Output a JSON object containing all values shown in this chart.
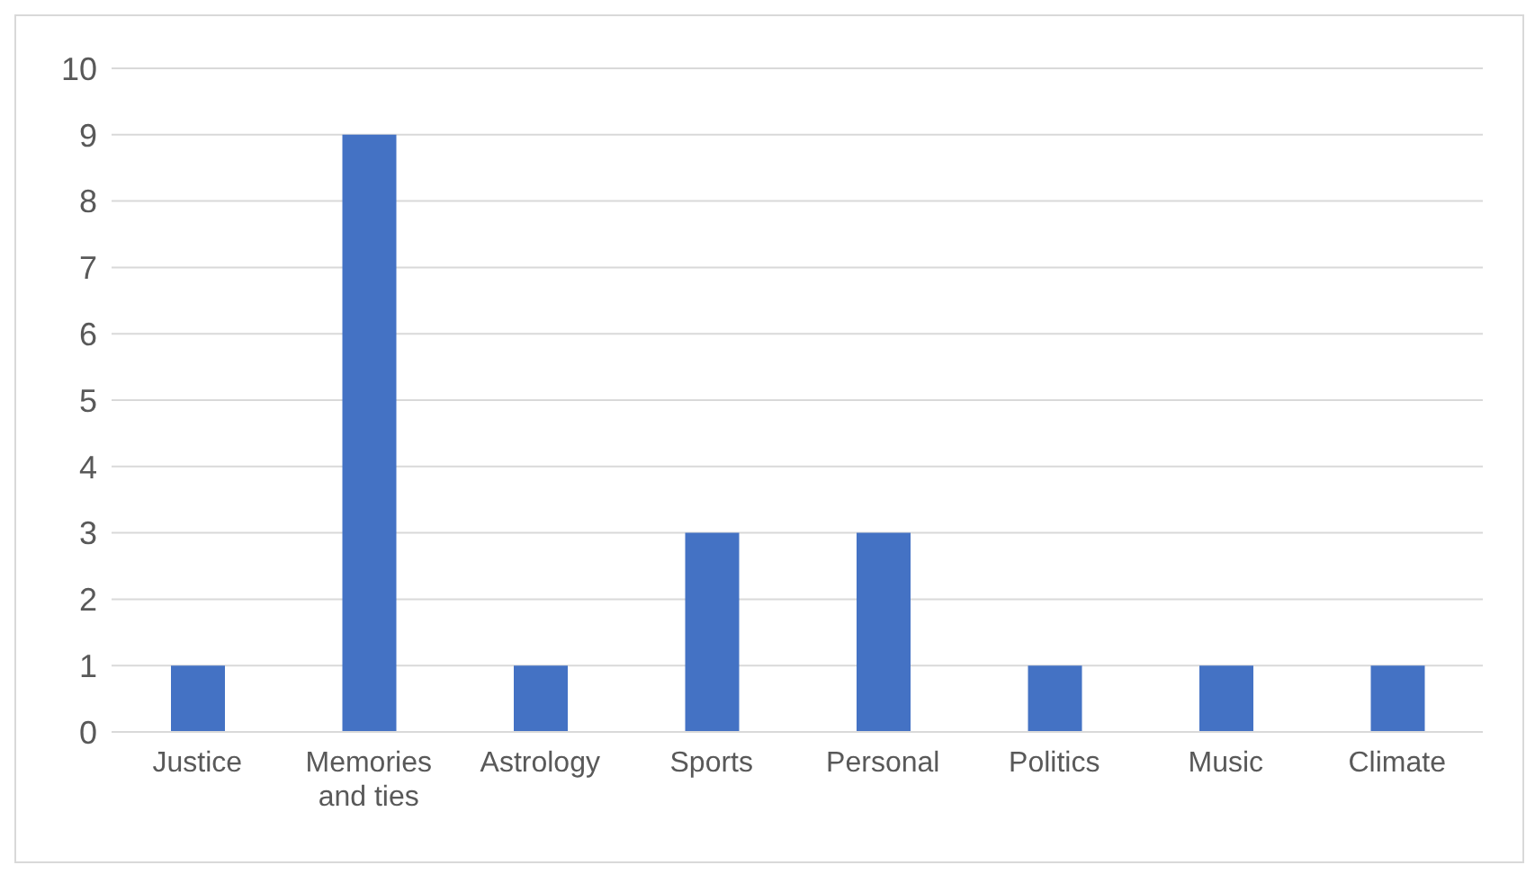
{
  "chart_data": {
    "type": "bar",
    "categories": [
      "Justice",
      "Memories and ties",
      "Astrology",
      "Sports",
      "Personal",
      "Politics",
      "Music",
      "Climate"
    ],
    "values": [
      1,
      9,
      1,
      3,
      3,
      1,
      1,
      1
    ],
    "color": "#4472c4",
    "ylim": [
      0,
      10
    ],
    "yticks": [
      0,
      1,
      2,
      3,
      4,
      5,
      6,
      7,
      8,
      9,
      10
    ],
    "grid": "y"
  }
}
